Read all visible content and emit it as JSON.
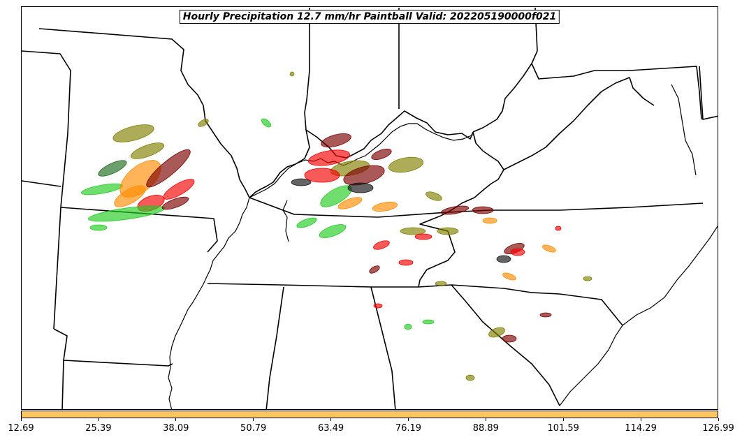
{
  "title": "Hourly Precipitation 12.7 mm/hr Paintball Valid: 202205190000f021",
  "colorbar": {
    "color": "#ffc561",
    "ticks": [
      "12.69",
      "25.39",
      "38.09",
      "50.79",
      "63.49",
      "76.19",
      "88.89",
      "101.59",
      "114.29",
      "126.99"
    ]
  },
  "palette": {
    "red": "#f40000",
    "dark_red": "#7d0000",
    "orange": "#ff8c00",
    "olive": "#808000",
    "green": "#22cc22",
    "dark_green": "#1f6b1f",
    "black": "#111111"
  }
}
